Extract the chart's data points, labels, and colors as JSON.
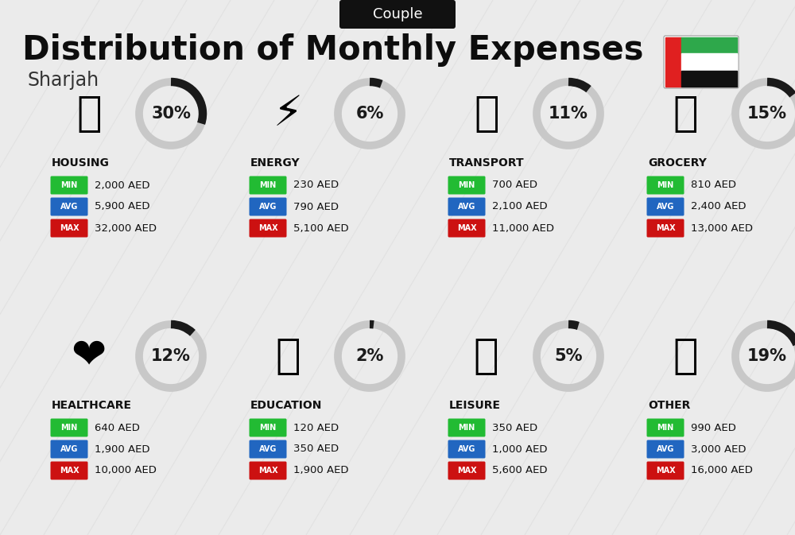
{
  "title": "Distribution of Monthly Expenses",
  "subtitle": "Sharjah",
  "header_label": "Couple",
  "bg_color": "#ebebeb",
  "categories": [
    {
      "name": "HOUSING",
      "percent": 30,
      "emoji": "🏙",
      "min": "2,000 AED",
      "avg": "5,900 AED",
      "max": "32,000 AED",
      "row": 0,
      "col": 0
    },
    {
      "name": "ENERGY",
      "percent": 6,
      "emoji": "⚡",
      "min": "230 AED",
      "avg": "790 AED",
      "max": "5,100 AED",
      "row": 0,
      "col": 1
    },
    {
      "name": "TRANSPORT",
      "percent": 11,
      "emoji": "🚌",
      "min": "700 AED",
      "avg": "2,100 AED",
      "max": "11,000 AED",
      "row": 0,
      "col": 2
    },
    {
      "name": "GROCERY",
      "percent": 15,
      "emoji": "🫔",
      "min": "810 AED",
      "avg": "2,400 AED",
      "max": "13,000 AED",
      "row": 0,
      "col": 3
    },
    {
      "name": "HEALTHCARE",
      "percent": 12,
      "emoji": "❤️",
      "min": "640 AED",
      "avg": "1,900 AED",
      "max": "10,000 AED",
      "row": 1,
      "col": 0
    },
    {
      "name": "EDUCATION",
      "percent": 2,
      "emoji": "🎓",
      "min": "120 AED",
      "avg": "350 AED",
      "max": "1,900 AED",
      "row": 1,
      "col": 1
    },
    {
      "name": "LEISURE",
      "percent": 5,
      "emoji": "🛍️",
      "min": "350 AED",
      "avg": "1,000 AED",
      "max": "5,600 AED",
      "row": 1,
      "col": 2
    },
    {
      "name": "OTHER",
      "percent": 19,
      "emoji": "💰",
      "min": "990 AED",
      "avg": "3,000 AED",
      "max": "16,000 AED",
      "row": 1,
      "col": 3
    }
  ],
  "color_min": "#22bb33",
  "color_avg": "#2166c0",
  "color_max": "#cc1111",
  "color_circle_dark": "#1a1a1a",
  "color_circle_light": "#c8c8c8",
  "title_fontsize": 30,
  "subtitle_fontsize": 17,
  "header_fontsize": 13,
  "cat_name_fontsize": 10,
  "percent_fontsize": 15,
  "badge_fontsize": 7,
  "value_fontsize": 9.5
}
